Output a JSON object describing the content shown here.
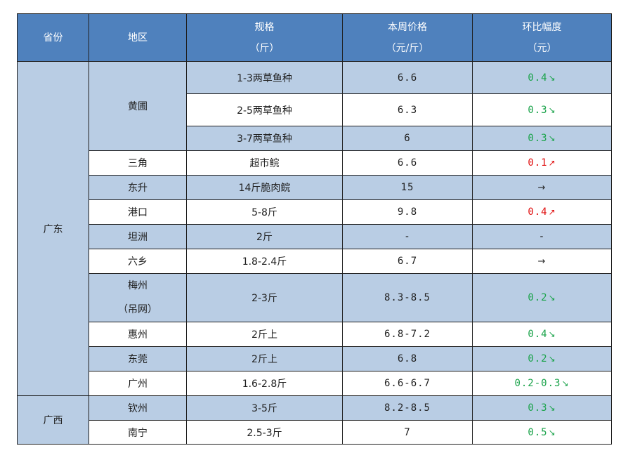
{
  "header": {
    "province": "省份",
    "region": "地区",
    "spec_l1": "规格",
    "spec_l2": "（斤）",
    "price_l1": "本周价格",
    "price_l2": "（元/斤）",
    "change_l1": "环比幅度",
    "change_l2": "（元）"
  },
  "provinces": [
    "广东",
    "广西"
  ],
  "arrows": {
    "down": "↘",
    "up": "↗",
    "flat": "→"
  },
  "colors": {
    "header_bg": "#4f81bd",
    "band_bg": "#b9cde4",
    "down": "#1aa34a",
    "up": "#e01010"
  },
  "rows": [
    {
      "region": "黄圃",
      "spec": "1-3两草鱼种",
      "price": "6.6",
      "change": "0.4",
      "trend": "down"
    },
    {
      "spec": "2-5两草鱼种",
      "price": "6.3",
      "change": "0.3",
      "trend": "down"
    },
    {
      "spec": "3-7两草鱼种",
      "price": "6",
      "change": "0.3",
      "trend": "down"
    },
    {
      "region": "三角",
      "spec": "超市鲩",
      "price": "6.6",
      "change": "0.1",
      "trend": "up"
    },
    {
      "region": "东升",
      "spec": "14斤脆肉鲩",
      "price": "15",
      "change": "",
      "trend": "flat"
    },
    {
      "region": "港口",
      "spec": "5-8斤",
      "price": "9.8",
      "change": "0.4",
      "trend": "up"
    },
    {
      "region": "坦洲",
      "spec": "2斤",
      "price": "-",
      "change": "-",
      "trend": "none"
    },
    {
      "region": "六乡",
      "spec": "1.8-2.4斤",
      "price": "6.7",
      "change": "",
      "trend": "flat"
    },
    {
      "region": "梅州",
      "region_l2": "（吊网）",
      "spec": "2-3斤",
      "price": "8.3-8.5",
      "change": "0.2",
      "trend": "down"
    },
    {
      "region": "惠州",
      "spec": "2斤上",
      "price": "6.8-7.2",
      "change": "0.4",
      "trend": "down"
    },
    {
      "region": "东莞",
      "spec": "2斤上",
      "price": "6.8",
      "change": "0.2",
      "trend": "down"
    },
    {
      "region": "广州",
      "spec": "1.6-2.8斤",
      "price": "6.6-6.7",
      "change": "0.2-0.3",
      "trend": "down"
    },
    {
      "region": "钦州",
      "spec": "3-5斤",
      "price": "8.2-8.5",
      "change": "0.3",
      "trend": "down"
    },
    {
      "region": "南宁",
      "spec": "2.5-3斤",
      "price": "7",
      "change": "0.5",
      "trend": "down"
    }
  ]
}
